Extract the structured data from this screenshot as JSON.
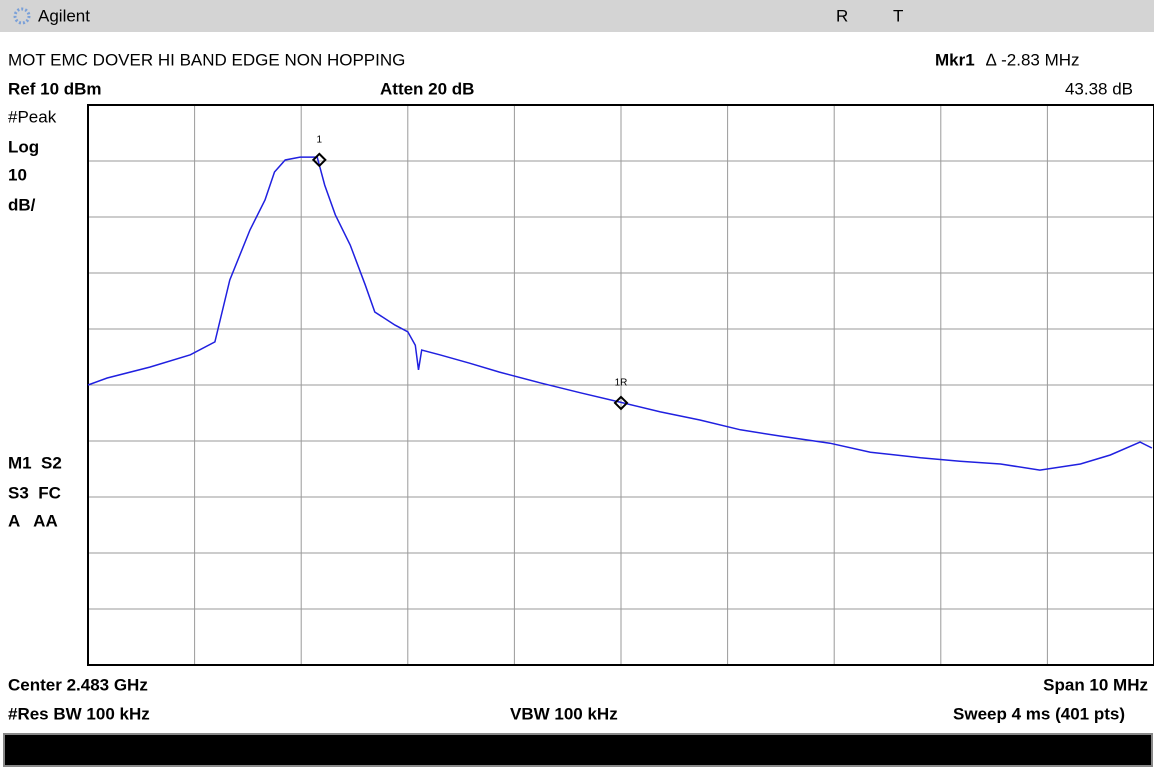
{
  "header": {
    "brand": "Agilent",
    "flag_r": "R",
    "flag_t": "T"
  },
  "top": {
    "title": "MOT EMC DOVER HI BAND EDGE NON HOPPING",
    "marker_name": "Mkr1",
    "marker_delta": "∆  -2.83 MHz",
    "marker_level": "43.38 dB",
    "ref": "Ref 10 dBm",
    "atten": "Atten 20 dB"
  },
  "side": {
    "detector": "#Peak",
    "scale_type": "Log",
    "scale_value": "10",
    "scale_unit": "dB/",
    "status1": "M1  S2",
    "status2": "S3  FC",
    "status3": "A   AA"
  },
  "bottom": {
    "center": "Center 2.483 GHz",
    "span": "Span 10 MHz",
    "rbw": "#Res BW 100 kHz",
    "vbw": "VBW 100 kHz",
    "sweep": "Sweep 4 ms (401 pts)"
  },
  "chart_data": {
    "type": "line",
    "color": "#2020e0",
    "xlim": [
      2.478,
      2.488
    ],
    "ylim": [
      -90,
      10
    ],
    "x": [
      2.478,
      2.47818,
      2.47858,
      2.47896,
      2.47919,
      2.47933,
      2.47952,
      2.47966,
      2.47975,
      2.47985,
      2.47999,
      2.48015,
      2.48022,
      2.48032,
      2.48046,
      2.4806,
      2.48069,
      2.48088,
      2.481,
      2.48107,
      2.4811,
      2.48113,
      2.4813,
      2.48158,
      2.48186,
      2.48224,
      2.48262,
      2.48302,
      2.48337,
      2.48374,
      2.48412,
      2.48449,
      2.48496,
      2.48534,
      2.48581,
      2.48618,
      2.48656,
      2.48693,
      2.48731,
      2.48759,
      2.48787,
      2.48798
    ],
    "values": [
      -40,
      -38.75,
      -36.8,
      -34.6,
      -32.3,
      -21.25,
      -12.3,
      -6.96,
      -1.96,
      0.18,
      0.7,
      0.7,
      -4.3,
      -9.6,
      -15,
      -22.1,
      -26.96,
      -29.3,
      -30.5,
      -32.9,
      -37.3,
      -33.75,
      -34.6,
      -36.1,
      -37.7,
      -39.6,
      -41.4,
      -43.2,
      -44.8,
      -46.25,
      -48,
      -49.1,
      -50.4,
      -52,
      -53,
      -53.6,
      -54.1,
      -55.2,
      -54.1,
      -52.5,
      -50.2,
      -51.25
    ],
    "markers": [
      {
        "label": "1",
        "x": 2.48017,
        "y": 0.2
      },
      {
        "label": "1R",
        "x": 2.483,
        "y": -43.2
      }
    ]
  }
}
